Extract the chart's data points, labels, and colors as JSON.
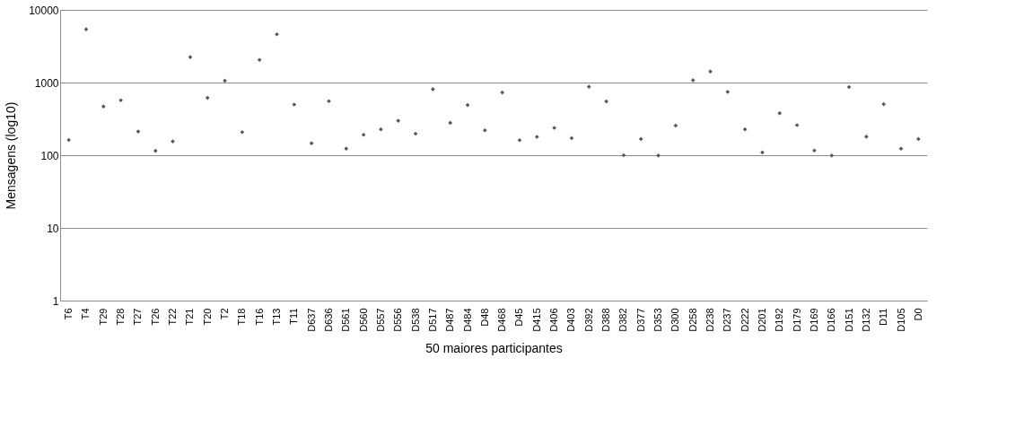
{
  "chart_data": {
    "type": "scatter",
    "xlabel": "50 maiores participantes",
    "ylabel": "Mensagens (log10)",
    "categories": [
      "T6",
      "T4",
      "T29",
      "T28",
      "T27",
      "T26",
      "T22",
      "T21",
      "T20",
      "T2",
      "T18",
      "T16",
      "T13",
      "T11",
      "D637",
      "D636",
      "D561",
      "D560",
      "D557",
      "D556",
      "D538",
      "D517",
      "D487",
      "D484",
      "D48",
      "D468",
      "D45",
      "D415",
      "D406",
      "D403",
      "D392",
      "D388",
      "D382",
      "D377",
      "D353",
      "D300",
      "D258",
      "D238",
      "D237",
      "D222",
      "D201",
      "D192",
      "D179",
      "D169",
      "D166",
      "D151",
      "D132",
      "D11",
      "D105",
      "D0"
    ],
    "values": [
      162,
      5400,
      468,
      570,
      212,
      115,
      155,
      2240,
      616,
      1060,
      208,
      2050,
      4610,
      498,
      146,
      554,
      123,
      191,
      227,
      298,
      198,
      809,
      279,
      490,
      220,
      730,
      161,
      179,
      238,
      172,
      875,
      550,
      100,
      167,
      99,
      256,
      1077,
      1420,
      743,
      227,
      109,
      379,
      259,
      116,
      99,
      867,
      180,
      504,
      123,
      167
    ],
    "color": "#595959",
    "marker": "diamond",
    "log": "y",
    "ylim": [
      1,
      10000
    ],
    "yticks": [
      1,
      10,
      100,
      1000,
      10000
    ],
    "grid": "y"
  }
}
